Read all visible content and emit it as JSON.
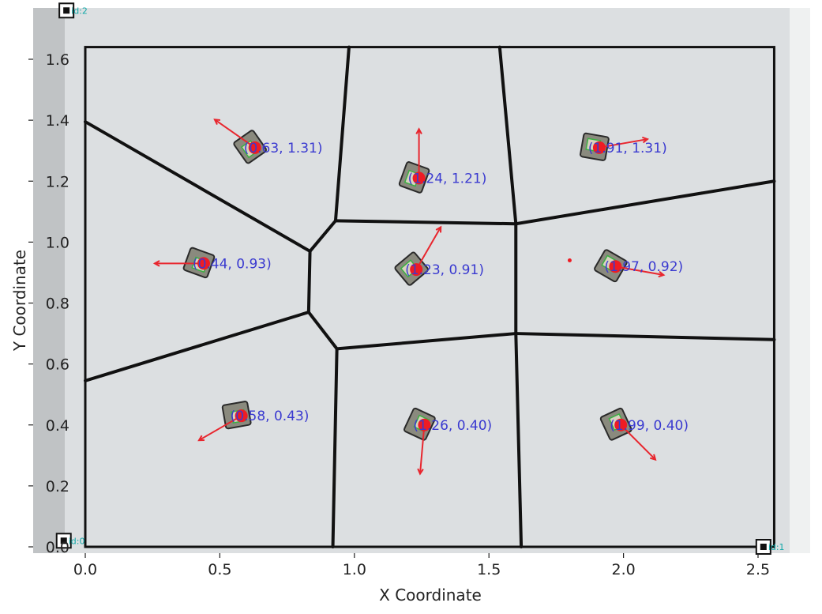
{
  "colors": {
    "arena_floor": "#dcdfe1",
    "voronoi_edge": "#111111",
    "boundary": "#111111",
    "robot_dot": "#ee1c24",
    "heading_arrow": "#e8262e",
    "label_text": "#3a3ad0",
    "marker_text": "#12a8a8"
  },
  "chart_data": {
    "type": "scatter",
    "title": "",
    "xlabel": "X Coordinate",
    "ylabel": "Y Coordinate",
    "xlim": [
      -0.1,
      2.56
    ],
    "ylim": [
      0.0,
      1.64
    ],
    "xticks": [
      {
        "value": 0.0,
        "label": "0.0"
      },
      {
        "value": 0.5,
        "label": "0.5"
      },
      {
        "value": 1.0,
        "label": "1.0"
      },
      {
        "value": 1.5,
        "label": "1.5"
      },
      {
        "value": 2.0,
        "label": "2.0"
      },
      {
        "value": 2.5,
        "label": "2.5"
      }
    ],
    "yticks": [
      {
        "value": 0.0,
        "label": "0.0"
      },
      {
        "value": 0.2,
        "label": "0.2"
      },
      {
        "value": 0.4,
        "label": "0.4"
      },
      {
        "value": 0.6,
        "label": "0.6"
      },
      {
        "value": 0.8,
        "label": "0.8"
      },
      {
        "value": 1.0,
        "label": "1.0"
      },
      {
        "value": 1.2,
        "label": "1.2"
      },
      {
        "value": 1.4,
        "label": "1.4"
      },
      {
        "value": 1.6,
        "label": "1.6"
      }
    ],
    "boundary": {
      "x0": 0.0,
      "x1": 2.56,
      "y0": 0.0,
      "y1": 1.64
    },
    "voronoi_edges": [
      [
        [
          0.0,
          1.395
        ],
        [
          0.835,
          0.97
        ]
      ],
      [
        [
          0.835,
          0.97
        ],
        [
          0.93,
          1.07
        ]
      ],
      [
        [
          0.835,
          0.97
        ],
        [
          0.83,
          0.77
        ]
      ],
      [
        [
          0.83,
          0.77
        ],
        [
          0.935,
          0.65
        ]
      ],
      [
        [
          0.83,
          0.77
        ],
        [
          0.0,
          0.545
        ]
      ],
      [
        [
          0.935,
          0.65
        ],
        [
          1.6,
          0.7
        ]
      ],
      [
        [
          0.935,
          0.65
        ],
        [
          0.92,
          0.0
        ]
      ],
      [
        [
          0.93,
          1.07
        ],
        [
          0.98,
          1.64
        ]
      ],
      [
        [
          0.93,
          1.07
        ],
        [
          1.6,
          1.06
        ]
      ],
      [
        [
          1.6,
          1.06
        ],
        [
          1.54,
          1.64
        ]
      ],
      [
        [
          1.6,
          1.06
        ],
        [
          2.56,
          1.2
        ]
      ],
      [
        [
          1.6,
          1.06
        ],
        [
          1.6,
          0.7
        ]
      ],
      [
        [
          1.6,
          0.7
        ],
        [
          2.56,
          0.68
        ]
      ],
      [
        [
          1.6,
          0.7
        ],
        [
          1.62,
          0.0
        ]
      ]
    ],
    "robots": [
      {
        "x": 0.63,
        "y": 1.31,
        "label": "(0.63, 1.31)",
        "heading": 145
      },
      {
        "x": 1.24,
        "y": 1.21,
        "label": "(1.24, 1.21)",
        "heading": 90
      },
      {
        "x": 1.91,
        "y": 1.31,
        "label": "(1.91, 1.31)",
        "heading": 10
      },
      {
        "x": 0.44,
        "y": 0.93,
        "label": "(0.44, 0.93)",
        "heading": 180
      },
      {
        "x": 1.23,
        "y": 0.91,
        "label": "(1.23, 0.91)",
        "heading": 60
      },
      {
        "x": 1.97,
        "y": 0.92,
        "label": "(1.97, 0.92)",
        "heading": -10
      },
      {
        "x": 0.58,
        "y": 0.43,
        "label": "(0.58, 0.43)",
        "heading": 210
      },
      {
        "x": 1.26,
        "y": 0.4,
        "label": "(1.26, 0.40)",
        "heading": 265
      },
      {
        "x": 1.99,
        "y": 0.4,
        "label": "(1.99, 0.40)",
        "heading": 315
      }
    ],
    "stray_point": {
      "x": 1.8,
      "y": 0.94
    },
    "corner_markers": [
      {
        "x": -0.07,
        "y": 1.76,
        "label": "id:2"
      },
      {
        "x": -0.08,
        "y": 0.02,
        "label": "id:0"
      },
      {
        "x": 2.52,
        "y": 0.0,
        "label": "id:1"
      }
    ]
  }
}
